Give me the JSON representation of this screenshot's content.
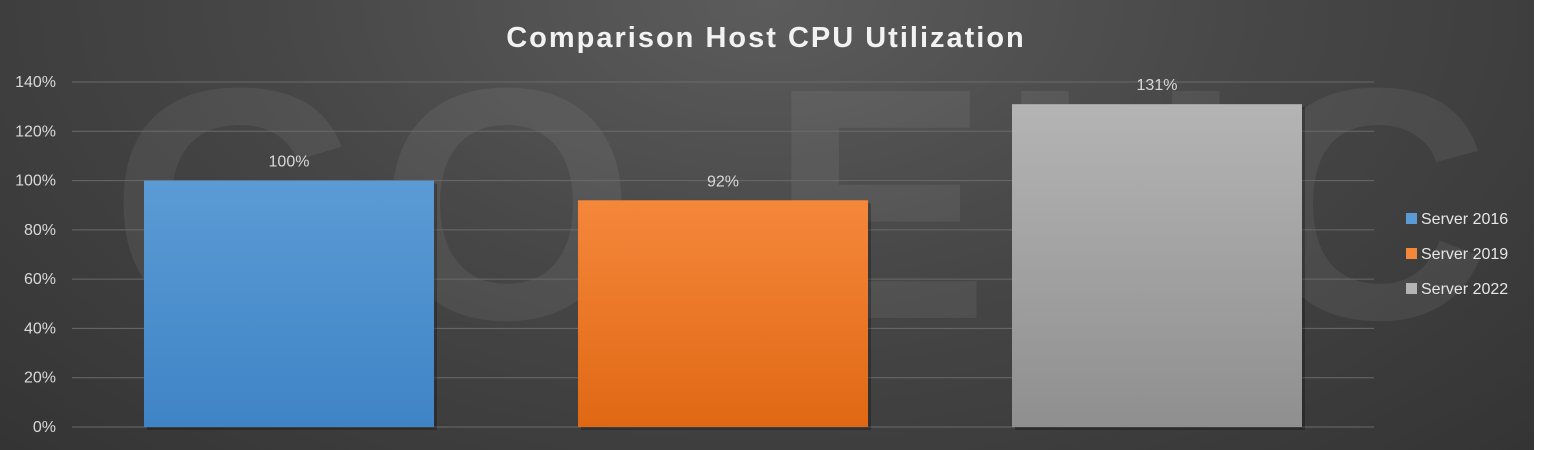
{
  "watermark": "GO-EUC",
  "colors": {
    "background": "#444444",
    "text": "#d9d9d9",
    "title": "#f2f2f2",
    "grid": "#6a6a6a"
  },
  "chart_data": {
    "type": "bar",
    "title": "Comparison Host CPU Utilization",
    "xlabel": "",
    "ylabel": "",
    "ylim": [
      0,
      140
    ],
    "yticks": [
      0,
      20,
      40,
      60,
      80,
      100,
      120,
      140
    ],
    "tick_format": "percent",
    "grid": true,
    "legend_position": "right",
    "series": [
      {
        "name": "Server 2016",
        "value": 100,
        "label": "100%",
        "color": "#5b9bd5",
        "color_dark": "#3f84c6"
      },
      {
        "name": "Server 2019",
        "value": 92,
        "label": "92%",
        "color": "#f5873b",
        "color_dark": "#e06814"
      },
      {
        "name": "Server 2022",
        "value": 131,
        "label": "131%",
        "color": "#b4b4b4",
        "color_dark": "#8f8f8f"
      }
    ]
  }
}
